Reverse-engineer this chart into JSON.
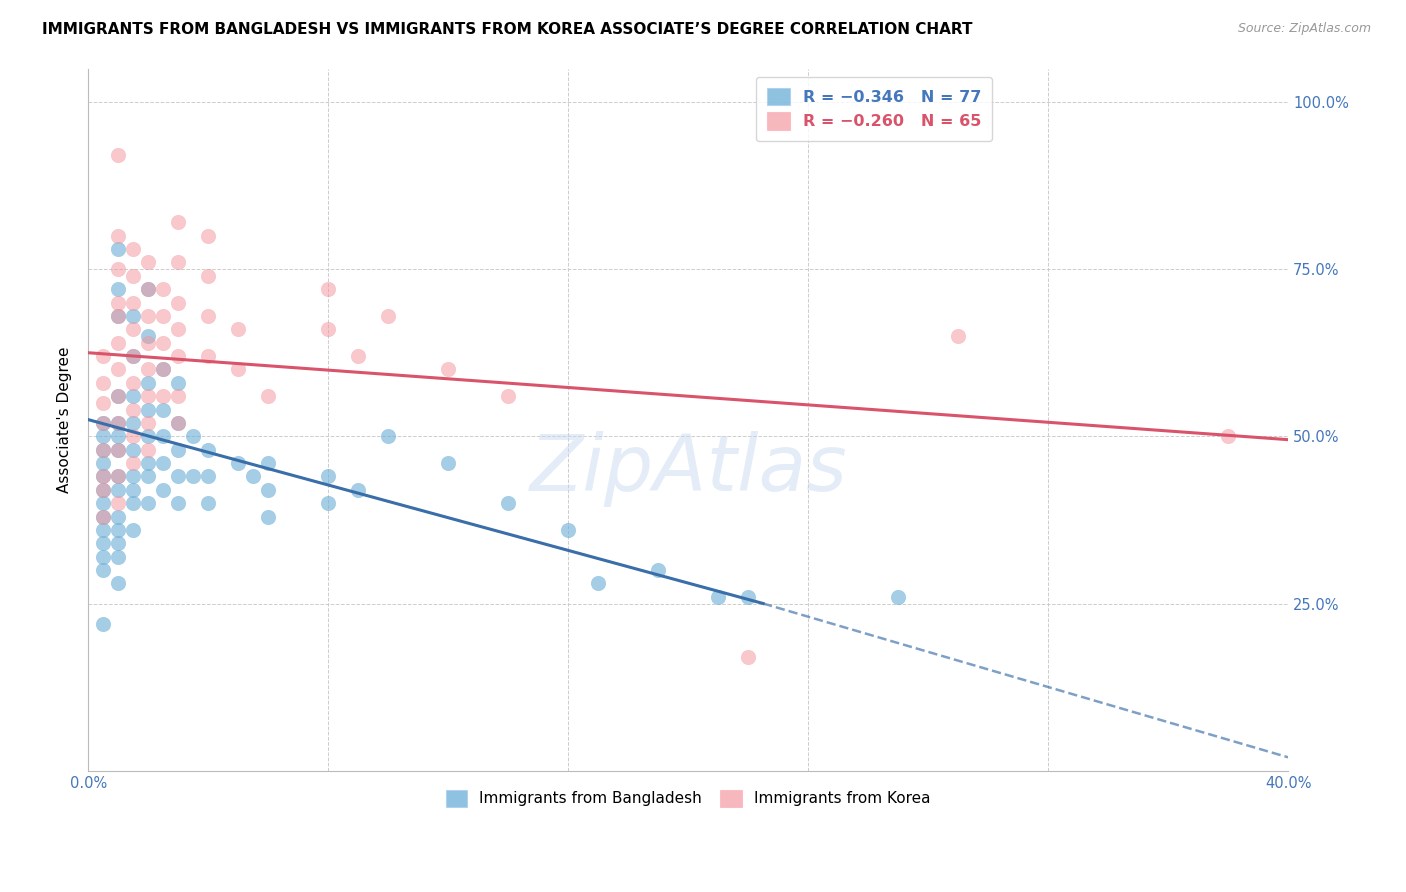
{
  "title": "IMMIGRANTS FROM BANGLADESH VS IMMIGRANTS FROM KOREA ASSOCIATE’S DEGREE CORRELATION CHART",
  "source": "Source: ZipAtlas.com",
  "ylabel": "Associate's Degree",
  "xlim": [
    0.0,
    0.4
  ],
  "ylim": [
    0.0,
    1.05
  ],
  "ytick_labels": [
    "",
    "25.0%",
    "50.0%",
    "75.0%",
    "100.0%"
  ],
  "ytick_values": [
    0.0,
    0.25,
    0.5,
    0.75,
    1.0
  ],
  "xtick_labels": [
    "0.0%",
    "",
    "",
    "",
    "",
    "40.0%"
  ],
  "xtick_values": [
    0.0,
    0.08,
    0.16,
    0.24,
    0.32,
    0.4
  ],
  "bangladesh_scatter": [
    [
      0.005,
      0.52
    ],
    [
      0.005,
      0.5
    ],
    [
      0.005,
      0.48
    ],
    [
      0.005,
      0.46
    ],
    [
      0.005,
      0.44
    ],
    [
      0.005,
      0.42
    ],
    [
      0.005,
      0.4
    ],
    [
      0.005,
      0.38
    ],
    [
      0.005,
      0.36
    ],
    [
      0.005,
      0.34
    ],
    [
      0.005,
      0.32
    ],
    [
      0.005,
      0.3
    ],
    [
      0.005,
      0.22
    ],
    [
      0.01,
      0.78
    ],
    [
      0.01,
      0.72
    ],
    [
      0.01,
      0.68
    ],
    [
      0.01,
      0.56
    ],
    [
      0.01,
      0.52
    ],
    [
      0.01,
      0.5
    ],
    [
      0.01,
      0.48
    ],
    [
      0.01,
      0.44
    ],
    [
      0.01,
      0.42
    ],
    [
      0.01,
      0.38
    ],
    [
      0.01,
      0.36
    ],
    [
      0.01,
      0.34
    ],
    [
      0.01,
      0.32
    ],
    [
      0.01,
      0.28
    ],
    [
      0.015,
      0.68
    ],
    [
      0.015,
      0.62
    ],
    [
      0.015,
      0.56
    ],
    [
      0.015,
      0.52
    ],
    [
      0.015,
      0.48
    ],
    [
      0.015,
      0.44
    ],
    [
      0.015,
      0.42
    ],
    [
      0.015,
      0.4
    ],
    [
      0.015,
      0.36
    ],
    [
      0.02,
      0.72
    ],
    [
      0.02,
      0.65
    ],
    [
      0.02,
      0.58
    ],
    [
      0.02,
      0.54
    ],
    [
      0.02,
      0.5
    ],
    [
      0.02,
      0.46
    ],
    [
      0.02,
      0.44
    ],
    [
      0.02,
      0.4
    ],
    [
      0.025,
      0.6
    ],
    [
      0.025,
      0.54
    ],
    [
      0.025,
      0.5
    ],
    [
      0.025,
      0.46
    ],
    [
      0.025,
      0.42
    ],
    [
      0.03,
      0.58
    ],
    [
      0.03,
      0.52
    ],
    [
      0.03,
      0.48
    ],
    [
      0.03,
      0.44
    ],
    [
      0.03,
      0.4
    ],
    [
      0.035,
      0.5
    ],
    [
      0.035,
      0.44
    ],
    [
      0.04,
      0.48
    ],
    [
      0.04,
      0.44
    ],
    [
      0.04,
      0.4
    ],
    [
      0.05,
      0.46
    ],
    [
      0.055,
      0.44
    ],
    [
      0.06,
      0.46
    ],
    [
      0.06,
      0.42
    ],
    [
      0.06,
      0.38
    ],
    [
      0.08,
      0.44
    ],
    [
      0.08,
      0.4
    ],
    [
      0.09,
      0.42
    ],
    [
      0.1,
      0.5
    ],
    [
      0.12,
      0.46
    ],
    [
      0.14,
      0.4
    ],
    [
      0.16,
      0.36
    ],
    [
      0.17,
      0.28
    ],
    [
      0.19,
      0.3
    ],
    [
      0.21,
      0.26
    ],
    [
      0.22,
      0.26
    ],
    [
      0.27,
      0.26
    ]
  ],
  "korea_scatter": [
    [
      0.005,
      0.62
    ],
    [
      0.005,
      0.58
    ],
    [
      0.005,
      0.55
    ],
    [
      0.005,
      0.52
    ],
    [
      0.005,
      0.48
    ],
    [
      0.005,
      0.44
    ],
    [
      0.005,
      0.42
    ],
    [
      0.005,
      0.38
    ],
    [
      0.01,
      0.92
    ],
    [
      0.01,
      0.8
    ],
    [
      0.01,
      0.75
    ],
    [
      0.01,
      0.7
    ],
    [
      0.01,
      0.68
    ],
    [
      0.01,
      0.64
    ],
    [
      0.01,
      0.6
    ],
    [
      0.01,
      0.56
    ],
    [
      0.01,
      0.52
    ],
    [
      0.01,
      0.48
    ],
    [
      0.01,
      0.44
    ],
    [
      0.01,
      0.4
    ],
    [
      0.015,
      0.78
    ],
    [
      0.015,
      0.74
    ],
    [
      0.015,
      0.7
    ],
    [
      0.015,
      0.66
    ],
    [
      0.015,
      0.62
    ],
    [
      0.015,
      0.58
    ],
    [
      0.015,
      0.54
    ],
    [
      0.015,
      0.5
    ],
    [
      0.015,
      0.46
    ],
    [
      0.02,
      0.76
    ],
    [
      0.02,
      0.72
    ],
    [
      0.02,
      0.68
    ],
    [
      0.02,
      0.64
    ],
    [
      0.02,
      0.6
    ],
    [
      0.02,
      0.56
    ],
    [
      0.02,
      0.52
    ],
    [
      0.02,
      0.48
    ],
    [
      0.025,
      0.72
    ],
    [
      0.025,
      0.68
    ],
    [
      0.025,
      0.64
    ],
    [
      0.025,
      0.6
    ],
    [
      0.025,
      0.56
    ],
    [
      0.03,
      0.82
    ],
    [
      0.03,
      0.76
    ],
    [
      0.03,
      0.7
    ],
    [
      0.03,
      0.66
    ],
    [
      0.03,
      0.62
    ],
    [
      0.03,
      0.56
    ],
    [
      0.03,
      0.52
    ],
    [
      0.04,
      0.8
    ],
    [
      0.04,
      0.74
    ],
    [
      0.04,
      0.68
    ],
    [
      0.04,
      0.62
    ],
    [
      0.05,
      0.66
    ],
    [
      0.05,
      0.6
    ],
    [
      0.06,
      0.56
    ],
    [
      0.08,
      0.72
    ],
    [
      0.08,
      0.66
    ],
    [
      0.09,
      0.62
    ],
    [
      0.1,
      0.68
    ],
    [
      0.12,
      0.6
    ],
    [
      0.14,
      0.56
    ],
    [
      0.29,
      0.65
    ],
    [
      0.38,
      0.5
    ],
    [
      0.22,
      0.17
    ]
  ],
  "bangladesh_line_solid": {
    "x": [
      0.0,
      0.225
    ],
    "y": [
      0.525,
      0.25
    ]
  },
  "bangladesh_line_dash": {
    "x": [
      0.225,
      0.4
    ],
    "y": [
      0.25,
      0.02
    ]
  },
  "korea_line": {
    "x": [
      0.0,
      0.4
    ],
    "y": [
      0.625,
      0.495
    ]
  },
  "bangladesh_color": "#6aaed6",
  "korea_color": "#f4939a",
  "trend_bangladesh_color": "#3a6ea8",
  "trend_korea_color": "#d9546a",
  "watermark": "ZipAtlas",
  "background_color": "#ffffff",
  "grid_color": "#c8c8c8",
  "axis_color": "#4477bb",
  "title_fontsize": 11,
  "label_fontsize": 11,
  "tick_fontsize": 10.5,
  "legend_fontsize": 11.5
}
